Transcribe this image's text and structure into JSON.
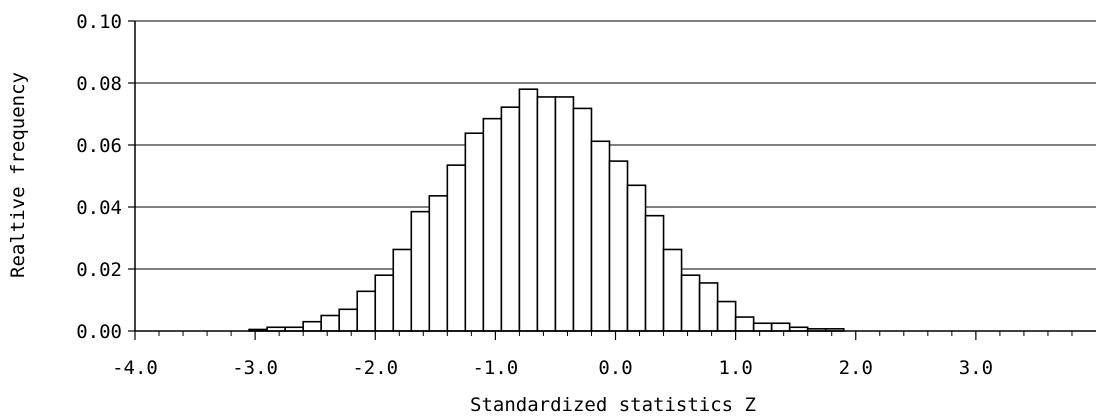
{
  "chart_data": {
    "type": "bar",
    "histogram": true,
    "title": "",
    "xlabel": "Standardized statistics Z",
    "ylabel": "Realtive frequency",
    "xlim": [
      -4.0,
      4.0
    ],
    "ylim": [
      0.0,
      0.1
    ],
    "bin_width": 0.15,
    "x_ticks": [
      -4.0,
      -3.0,
      -2.0,
      -1.0,
      0.0,
      1.0,
      2.0,
      3.0
    ],
    "x_tick_labels": [
      "-4.0",
      "-3.0",
      "-2.0",
      "-1.0",
      "0.0",
      "1.0",
      "2.0",
      "3.0"
    ],
    "y_ticks": [
      0.0,
      0.02,
      0.04,
      0.06,
      0.08,
      0.1
    ],
    "y_tick_labels": [
      "0.00",
      "0.02",
      "0.04",
      "0.06",
      "0.08",
      "0.10"
    ],
    "grid": "horizontal",
    "legend": "none",
    "bins": [
      {
        "x0": -3.05,
        "x1": -2.9,
        "value": 0.0005
      },
      {
        "x0": -2.9,
        "x1": -2.75,
        "value": 0.0012
      },
      {
        "x0": -2.75,
        "x1": -2.6,
        "value": 0.0012
      },
      {
        "x0": -2.6,
        "x1": -2.45,
        "value": 0.003
      },
      {
        "x0": -2.45,
        "x1": -2.3,
        "value": 0.005
      },
      {
        "x0": -2.3,
        "x1": -2.15,
        "value": 0.007
      },
      {
        "x0": -2.15,
        "x1": -2.0,
        "value": 0.0128
      },
      {
        "x0": -2.0,
        "x1": -1.85,
        "value": 0.018
      },
      {
        "x0": -1.85,
        "x1": -1.7,
        "value": 0.0263
      },
      {
        "x0": -1.7,
        "x1": -1.55,
        "value": 0.0385
      },
      {
        "x0": -1.55,
        "x1": -1.4,
        "value": 0.0436
      },
      {
        "x0": -1.4,
        "x1": -1.25,
        "value": 0.0535
      },
      {
        "x0": -1.25,
        "x1": -1.1,
        "value": 0.0638
      },
      {
        "x0": -1.1,
        "x1": -0.95,
        "value": 0.0685
      },
      {
        "x0": -0.95,
        "x1": -0.8,
        "value": 0.0722
      },
      {
        "x0": -0.8,
        "x1": -0.65,
        "value": 0.078
      },
      {
        "x0": -0.65,
        "x1": -0.5,
        "value": 0.0755
      },
      {
        "x0": -0.5,
        "x1": -0.35,
        "value": 0.0755
      },
      {
        "x0": -0.35,
        "x1": -0.2,
        "value": 0.0718
      },
      {
        "x0": -0.2,
        "x1": -0.05,
        "value": 0.0612
      },
      {
        "x0": -0.05,
        "x1": 0.1,
        "value": 0.0548
      },
      {
        "x0": 0.1,
        "x1": 0.25,
        "value": 0.047
      },
      {
        "x0": 0.25,
        "x1": 0.4,
        "value": 0.0372
      },
      {
        "x0": 0.4,
        "x1": 0.55,
        "value": 0.0263
      },
      {
        "x0": 0.55,
        "x1": 0.7,
        "value": 0.018
      },
      {
        "x0": 0.7,
        "x1": 0.85,
        "value": 0.0155
      },
      {
        "x0": 0.85,
        "x1": 1.0,
        "value": 0.0095
      },
      {
        "x0": 1.0,
        "x1": 1.15,
        "value": 0.0045
      },
      {
        "x0": 1.15,
        "x1": 1.3,
        "value": 0.0025
      },
      {
        "x0": 1.3,
        "x1": 1.45,
        "value": 0.0025
      },
      {
        "x0": 1.45,
        "x1": 1.6,
        "value": 0.0012
      },
      {
        "x0": 1.6,
        "x1": 1.75,
        "value": 0.0007
      },
      {
        "x0": 1.75,
        "x1": 1.9,
        "value": 0.0007
      }
    ]
  }
}
